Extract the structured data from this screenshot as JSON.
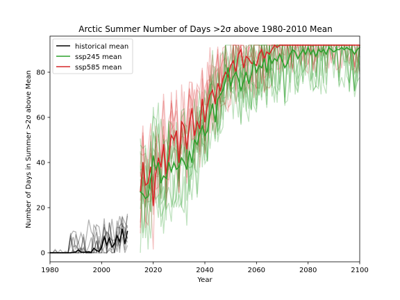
{
  "chart_data": {
    "type": "line",
    "title": "Arctic Summer Number of Days >2σ above 1980-2010 Mean",
    "xlabel": "Year",
    "ylabel": "Number of Days in Summer >2σ above Mean",
    "xlim": [
      1980,
      2100
    ],
    "ylim": [
      -4,
      96
    ],
    "xticks": [
      1980,
      2000,
      2020,
      2040,
      2060,
      2080,
      2100
    ],
    "yticks": [
      0,
      20,
      40,
      60,
      80
    ],
    "grid": false,
    "legend_position": "top-left",
    "colors": {
      "historical": "#000000",
      "ssp245": "#2ca02c",
      "ssp585": "#d62728"
    },
    "series": [
      {
        "name": "historical mean",
        "key": "historical",
        "x": [
          1980,
          1981,
          1982,
          1983,
          1984,
          1985,
          1986,
          1987,
          1988,
          1989,
          1990,
          1991,
          1992,
          1993,
          1994,
          1995,
          1996,
          1997,
          1998,
          1999,
          2000,
          2001,
          2002,
          2003,
          2004,
          2005,
          2006,
          2007,
          2008,
          2009,
          2010
        ],
        "y": [
          0,
          0,
          0,
          0,
          0,
          0,
          0,
          0,
          0,
          0.2,
          0.4,
          1.2,
          0.3,
          0.2,
          0.3,
          0.5,
          0.2,
          2.0,
          1.0,
          0.6,
          2.5,
          7.0,
          3.5,
          6.5,
          2.5,
          4.0,
          7.5,
          5.0,
          10.5,
          4.0,
          9.5
        ]
      },
      {
        "name": "ssp245 mean",
        "key": "ssp245",
        "x": [
          2015,
          2016,
          2017,
          2018,
          2019,
          2020,
          2021,
          2022,
          2023,
          2024,
          2025,
          2026,
          2027,
          2028,
          2029,
          2030,
          2031,
          2032,
          2033,
          2034,
          2035,
          2036,
          2037,
          2038,
          2039,
          2040,
          2041,
          2042,
          2043,
          2044,
          2045,
          2046,
          2047,
          2048,
          2049,
          2050,
          2051,
          2052,
          2053,
          2054,
          2055,
          2056,
          2057,
          2058,
          2059,
          2060,
          2061,
          2062,
          2063,
          2064,
          2065,
          2066,
          2067,
          2068,
          2069,
          2070,
          2071,
          2072,
          2073,
          2074,
          2075,
          2076,
          2077,
          2078,
          2079,
          2080,
          2081,
          2082,
          2083,
          2084,
          2085,
          2086,
          2087,
          2088,
          2089,
          2090,
          2091,
          2092,
          2093,
          2094,
          2095,
          2096,
          2097,
          2098,
          2099,
          2100
        ],
        "y": [
          27,
          26,
          24,
          25,
          33,
          43,
          37,
          40,
          31,
          34,
          33,
          40,
          36,
          40,
          37,
          38,
          42,
          40,
          37,
          45,
          40,
          50,
          48,
          53,
          56,
          52,
          54,
          61,
          66,
          58,
          68,
          70,
          72,
          76,
          82,
          74,
          78,
          80,
          77,
          72,
          76,
          80,
          75,
          79,
          85,
          80,
          83,
          82,
          86,
          80,
          87,
          84,
          86,
          85,
          88,
          85,
          82,
          84,
          88,
          90,
          89,
          86,
          88,
          90,
          88,
          91,
          88,
          90,
          87,
          90,
          89,
          90,
          88,
          91,
          90,
          89,
          90,
          90,
          91,
          90,
          91,
          90,
          90,
          88,
          90,
          91
        ]
      },
      {
        "name": "ssp585 mean",
        "key": "ssp585",
        "x": [
          2015,
          2016,
          2017,
          2018,
          2019,
          2020,
          2021,
          2022,
          2023,
          2024,
          2025,
          2026,
          2027,
          2028,
          2029,
          2030,
          2031,
          2032,
          2033,
          2034,
          2035,
          2036,
          2037,
          2038,
          2039,
          2040,
          2041,
          2042,
          2043,
          2044,
          2045,
          2046,
          2047,
          2048,
          2049,
          2050,
          2051,
          2052,
          2053,
          2054,
          2055,
          2056,
          2057,
          2058,
          2059,
          2060,
          2061,
          2062,
          2063,
          2064,
          2065,
          2066,
          2067,
          2068,
          2069,
          2070,
          2071,
          2072,
          2073,
          2074,
          2075,
          2076,
          2077,
          2078,
          2079,
          2080,
          2081,
          2082,
          2083,
          2084,
          2085,
          2086,
          2087,
          2088,
          2089,
          2090,
          2091,
          2092,
          2093,
          2094,
          2095,
          2096,
          2097,
          2098,
          2099,
          2100
        ],
        "y": [
          27,
          40,
          30,
          31,
          38,
          21,
          35,
          42,
          38,
          48,
          35,
          42,
          52,
          50,
          54,
          40,
          58,
          56,
          46,
          57,
          64,
          52,
          58,
          55,
          68,
          58,
          65,
          70,
          72,
          66,
          75,
          72,
          77,
          80,
          78,
          83,
          85,
          80,
          88,
          90,
          82,
          87,
          86,
          84,
          84,
          83,
          88,
          90,
          86,
          89,
          88,
          90,
          92,
          91,
          92,
          92,
          92,
          92,
          92,
          92,
          92,
          92,
          92,
          92,
          92,
          92,
          92,
          92,
          92,
          92,
          92,
          92,
          92,
          92,
          92,
          92,
          92,
          92,
          92,
          92,
          92,
          92,
          92,
          92,
          92,
          92
        ]
      }
    ]
  }
}
